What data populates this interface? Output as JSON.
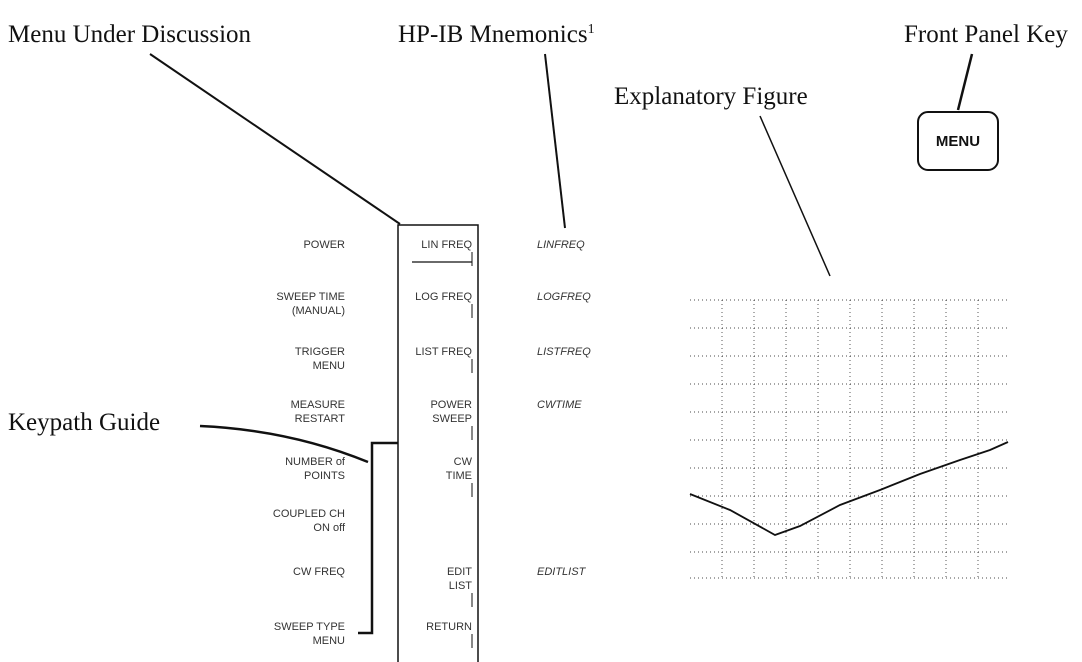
{
  "callouts": {
    "menu_under_discussion": "Menu Under Discussion",
    "hpib_mnemonics": "HP-IB Mnemonics",
    "footnote_mark": "1",
    "front_panel_key": "Front Panel Key",
    "explanatory_figure": "Explanatory Figure",
    "keypath_guide": "Keypath Guide"
  },
  "front_panel_key_label": "MENU",
  "rows": [
    {
      "left": [
        "POWER"
      ],
      "right": [
        "LIN FREQ"
      ],
      "mnemonic": "LINFREQ"
    },
    {
      "left": [
        "SWEEP TIME",
        "(MANUAL)"
      ],
      "right": [
        "LOG FREQ"
      ],
      "mnemonic": "LOGFREQ"
    },
    {
      "left": [
        "TRIGGER",
        "MENU"
      ],
      "right": [
        "LIST FREQ"
      ],
      "mnemonic": "LISTFREQ"
    },
    {
      "left": [
        "MEASURE",
        "RESTART"
      ],
      "right": [
        "POWER",
        "SWEEP"
      ],
      "mnemonic": "CWTIME"
    },
    {
      "left": [
        "NUMBER of",
        "POINTS"
      ],
      "right": [
        "CW",
        "TIME"
      ]
    },
    {
      "left": [
        "COUPLED CH",
        "ON off"
      ]
    },
    {
      "left": [
        "CW FREQ"
      ],
      "right": [
        "EDIT",
        "LIST"
      ],
      "mnemonic": "EDITLIST"
    },
    {
      "left": [
        "SWEEP TYPE",
        "MENU"
      ],
      "right": [
        "RETURN"
      ]
    }
  ]
}
